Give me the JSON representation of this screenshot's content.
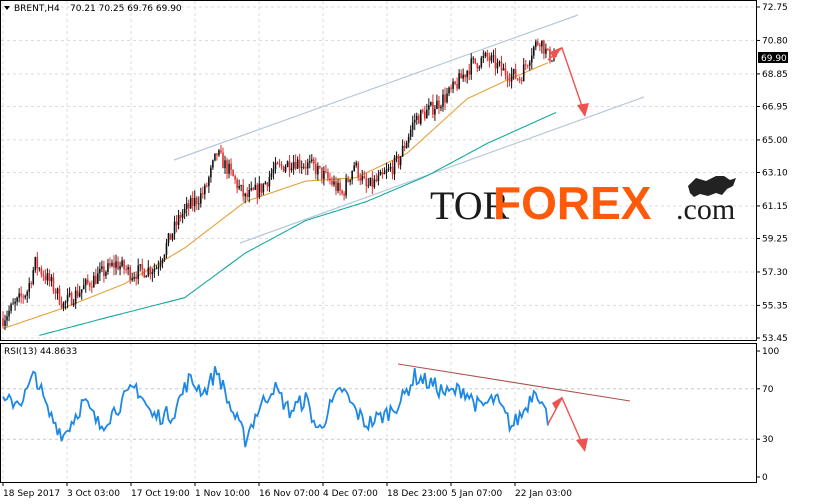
{
  "header": {
    "symbol": "BRENT,H4",
    "ohlc": "70.21 70.25 69.76 69.90"
  },
  "current_price": "69.90",
  "rsi_panel": {
    "label": "RSI(13) 44.8633",
    "levels": [
      "100",
      "70",
      "30",
      "0"
    ]
  },
  "logo": {
    "tor": "TOR",
    "forex": "FOREX",
    "dotcom": ".com"
  },
  "colors": {
    "bull_candle": "#111111",
    "bear_candle": "#e0302f",
    "ma_fast": "#e3a33a",
    "ma_slow": "#14a9a0",
    "rsi_line": "#1e88e5",
    "channel": "#b8c8d8",
    "trend_rsi": "#b05050",
    "arrow": "#ef5350"
  },
  "chart_data": [
    {
      "type": "candlestick",
      "title": "BRENT,H4",
      "ylim": [
        53.45,
        72.75
      ],
      "y_ticks": [
        "72.75",
        "70.80",
        "68.85",
        "66.95",
        "65.00",
        "63.10",
        "61.15",
        "59.25",
        "57.30",
        "55.35",
        "53.45"
      ],
      "x_ticks": [
        "18 Sep 2017",
        "3 Oct 03:00",
        "17 Oct 19:00",
        "1 Nov 10:00",
        "16 Nov 07:00",
        "4 Dec 07:00",
        "18 Dec 23:00",
        "5 Jan 07:00",
        "22 Jan 03:00"
      ],
      "path_keypoints": [
        {
          "i": 0,
          "p": 54.6
        },
        {
          "i": 12,
          "p": 56.2
        },
        {
          "i": 16,
          "p": 57.8
        },
        {
          "i": 24,
          "p": 56.6
        },
        {
          "i": 30,
          "p": 55.4
        },
        {
          "i": 44,
          "p": 56.8
        },
        {
          "i": 56,
          "p": 57.8
        },
        {
          "i": 64,
          "p": 57.2
        },
        {
          "i": 76,
          "p": 57.6
        },
        {
          "i": 88,
          "p": 60.6
        },
        {
          "i": 100,
          "p": 62.0
        },
        {
          "i": 106,
          "p": 64.2
        },
        {
          "i": 112,
          "p": 63.2
        },
        {
          "i": 120,
          "p": 61.6
        },
        {
          "i": 128,
          "p": 62.2
        },
        {
          "i": 134,
          "p": 63.2
        },
        {
          "i": 144,
          "p": 63.8
        },
        {
          "i": 154,
          "p": 63.4
        },
        {
          "i": 164,
          "p": 62.4
        },
        {
          "i": 168,
          "p": 61.8
        },
        {
          "i": 174,
          "p": 63.6
        },
        {
          "i": 180,
          "p": 62.2
        },
        {
          "i": 188,
          "p": 62.8
        },
        {
          "i": 196,
          "p": 63.8
        },
        {
          "i": 204,
          "p": 66.2
        },
        {
          "i": 212,
          "p": 66.8
        },
        {
          "i": 222,
          "p": 67.8
        },
        {
          "i": 232,
          "p": 69.4
        },
        {
          "i": 240,
          "p": 69.8
        },
        {
          "i": 248,
          "p": 69.0
        },
        {
          "i": 256,
          "p": 68.6
        },
        {
          "i": 262,
          "p": 70.2
        },
        {
          "i": 266,
          "p": 70.9
        },
        {
          "i": 270,
          "p": 69.9
        }
      ],
      "ma_fast_keypoints": [
        {
          "i": 0,
          "p": 54.0
        },
        {
          "i": 30,
          "p": 55.2
        },
        {
          "i": 60,
          "p": 56.6
        },
        {
          "i": 90,
          "p": 58.7
        },
        {
          "i": 120,
          "p": 61.4
        },
        {
          "i": 150,
          "p": 62.6
        },
        {
          "i": 175,
          "p": 62.8
        },
        {
          "i": 200,
          "p": 64.2
        },
        {
          "i": 230,
          "p": 67.4
        },
        {
          "i": 250,
          "p": 68.5
        },
        {
          "i": 270,
          "p": 69.5
        }
      ],
      "ma_slow_keypoints": [
        {
          "i": 18,
          "p": 53.6
        },
        {
          "i": 50,
          "p": 54.6
        },
        {
          "i": 90,
          "p": 55.8
        },
        {
          "i": 120,
          "p": 58.4
        },
        {
          "i": 150,
          "p": 60.3
        },
        {
          "i": 180,
          "p": 61.4
        },
        {
          "i": 210,
          "p": 62.9
        },
        {
          "i": 240,
          "p": 64.8
        },
        {
          "i": 274,
          "p": 66.6
        }
      ]
    },
    {
      "type": "line",
      "title": "RSI(13) 44.8633",
      "ylim": [
        0,
        100
      ],
      "y_ticks": [
        "100",
        "70",
        "30",
        "0"
      ],
      "levels": [
        70,
        30
      ],
      "keypoints": [
        {
          "i": 0,
          "v": 58
        },
        {
          "i": 10,
          "v": 62
        },
        {
          "i": 16,
          "v": 82
        },
        {
          "i": 22,
          "v": 52
        },
        {
          "i": 30,
          "v": 33
        },
        {
          "i": 40,
          "v": 60
        },
        {
          "i": 48,
          "v": 40
        },
        {
          "i": 58,
          "v": 58
        },
        {
          "i": 66,
          "v": 72
        },
        {
          "i": 74,
          "v": 48
        },
        {
          "i": 84,
          "v": 50
        },
        {
          "i": 92,
          "v": 77
        },
        {
          "i": 100,
          "v": 68
        },
        {
          "i": 106,
          "v": 85
        },
        {
          "i": 112,
          "v": 58
        },
        {
          "i": 120,
          "v": 30
        },
        {
          "i": 126,
          "v": 52
        },
        {
          "i": 134,
          "v": 72
        },
        {
          "i": 142,
          "v": 52
        },
        {
          "i": 150,
          "v": 62
        },
        {
          "i": 156,
          "v": 36
        },
        {
          "i": 162,
          "v": 55
        },
        {
          "i": 168,
          "v": 70
        },
        {
          "i": 174,
          "v": 54
        },
        {
          "i": 180,
          "v": 42
        },
        {
          "i": 190,
          "v": 50
        },
        {
          "i": 198,
          "v": 62
        },
        {
          "i": 204,
          "v": 80
        },
        {
          "i": 212,
          "v": 74
        },
        {
          "i": 220,
          "v": 66
        },
        {
          "i": 228,
          "v": 70
        },
        {
          "i": 236,
          "v": 55
        },
        {
          "i": 244,
          "v": 62
        },
        {
          "i": 252,
          "v": 40
        },
        {
          "i": 258,
          "v": 52
        },
        {
          "i": 264,
          "v": 72
        },
        {
          "i": 270,
          "v": 45
        }
      ]
    }
  ]
}
